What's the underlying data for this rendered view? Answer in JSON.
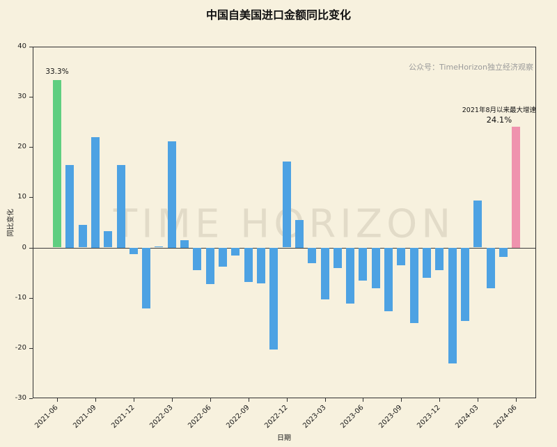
{
  "title": "中国自美国进口金额同比变化",
  "watermark": "TIME HORIZON",
  "source_note": "公众号：TimeHorizon独立经济观察",
  "annotations": {
    "first_bar_label": "33.3%",
    "last_bar_note": "2021年8月以来最大增速",
    "last_bar_value": "24.1%"
  },
  "colors": {
    "background": "#f7f1de",
    "bar_default": "#4da2e3",
    "bar_first": "#5fce80",
    "bar_last": "#ef93ae",
    "axis": "#2f2f2f"
  },
  "chart_data": {
    "type": "bar",
    "title": "中国自美国进口金额同比变化",
    "xlabel": "日期",
    "ylabel": "同比变化",
    "ylim": [
      -30,
      40
    ],
    "yticks": [
      -30,
      -20,
      -10,
      0,
      10,
      20,
      30,
      40
    ],
    "xticks": [
      "2021-06",
      "2021-09",
      "2021-12",
      "2022-03",
      "2022-06",
      "2022-09",
      "2022-12",
      "2023-03",
      "2023-06",
      "2023-09",
      "2023-12",
      "2024-03",
      "2024-06"
    ],
    "x": [
      "2021-06",
      "2021-07",
      "2021-08",
      "2021-09",
      "2021-10",
      "2021-11",
      "2021-12",
      "2022-01",
      "2022-02",
      "2022-03",
      "2022-04",
      "2022-05",
      "2022-06",
      "2022-07",
      "2022-08",
      "2022-09",
      "2022-10",
      "2022-11",
      "2022-12",
      "2023-01",
      "2023-02",
      "2023-03",
      "2023-04",
      "2023-05",
      "2023-06",
      "2023-07",
      "2023-08",
      "2023-09",
      "2023-10",
      "2023-11",
      "2023-12",
      "2024-01",
      "2024-02",
      "2024-03",
      "2024-04",
      "2024-05",
      "2024-06"
    ],
    "values": [
      33.3,
      16.5,
      4.5,
      22.0,
      3.2,
      16.5,
      -1.2,
      -12.0,
      0.2,
      21.2,
      1.5,
      -4.5,
      -7.2,
      -3.8,
      -1.5,
      -6.8,
      -7.0,
      -20.3,
      17.1,
      5.5,
      -3.0,
      -10.2,
      -4.0,
      -11.1,
      -6.5,
      -8.1,
      -12.6,
      -3.5,
      -15.0,
      -6.0,
      -4.5,
      -23.0,
      -14.5,
      9.3,
      -8.0,
      -1.8,
      24.1
    ],
    "highlight": {
      "first_index": 0,
      "last_index": 36
    },
    "grid": false,
    "legend_position": "none"
  }
}
